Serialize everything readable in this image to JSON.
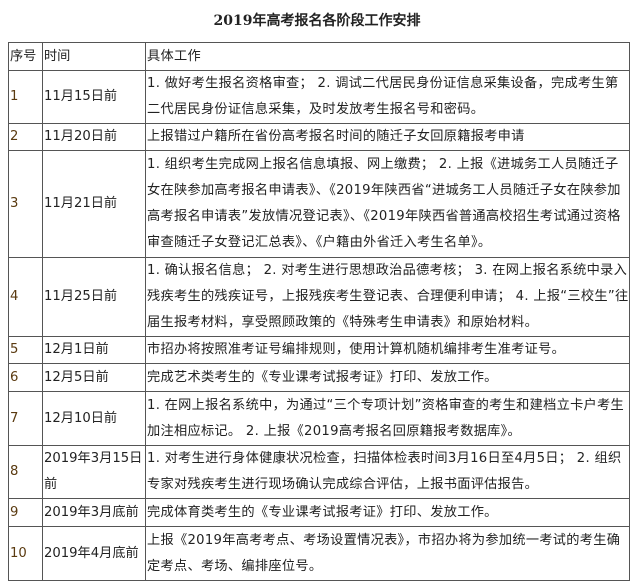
{
  "title": "2019年高考报名各阶段工作安排",
  "headers": [
    "序号",
    "时间",
    "具体工作"
  ],
  "rows": [
    {
      "no": "1",
      "time": "11月15日前",
      "work": "1. 做好考生报名资格审查； 2. 调试二代居民身份证信息采集设备，完成考生第二代居民身份证信息采集，及时发放考生报名号和密码。"
    },
    {
      "no": "2",
      "time": "11月20日前",
      "work": "上报错过户籍所在省份高考报名时间的随迁子女回原籍报考申请"
    },
    {
      "no": "3",
      "time": "11月21日前",
      "work": "1. 组织考生完成网上报名信息填报、网上缴费； 2. 上报《进城务工人员随迁子女在陕参加高考报名申请表》、《2019年陕西省“进城务工人员随迁子女在陕参加高考报名申请表”发放情况登记表》、《2019年陕西省普通高校招生考试通过资格审查随迁子女登记汇总表》、《户籍由外省迁入考生名单》。"
    },
    {
      "no": "4",
      "time": "11月25日前",
      "work": "1. 确认报名信息； 2. 对考生进行思想政治品德考核； 3. 在网上报名系统中录入残疾考生的残疾证号，上报残疾考生登记表、合理便利申请； 4. 上报“三校生”往届生报考材料，享受照顾政策的《特殊考生申请表》和原始材料。"
    },
    {
      "no": "5",
      "time": "12月1日前",
      "work": "市招办将按照准考证号编排规则，使用计算机随机编排考生准考证号。"
    },
    {
      "no": "6",
      "time": "12月5日前",
      "work": "完成艺术类考生的《专业课考试报考证》打印、发放工作。"
    },
    {
      "no": "7",
      "time": "12月10日前",
      "work": "1. 在网上报名系统中，为通过“三个专项计划”资格审查的考生和建档立卡户考生加注相应标记。 2. 上报《2019高考报名回原籍报考数据库》。"
    },
    {
      "no": "8",
      "time": "2019年3月15日前",
      "work": "1. 对考生进行身体健康状况检查，扫描体检表时间3月16日至4月5日； 2. 组织专家对残疾考生进行现场确认完成综合评估，上报书面评估报告。"
    },
    {
      "no": "9",
      "time": "2019年3月底前",
      "work": "完成体育类考生的《专业课考试报考证》打印、发放工作。"
    },
    {
      "no": "10",
      "time": "2019年4月底前",
      "work": "上报《2019年高考考点、考场设置情况表》，市招办将为参加统一考试的考生确定考点、考场、编排座位号。"
    }
  ]
}
